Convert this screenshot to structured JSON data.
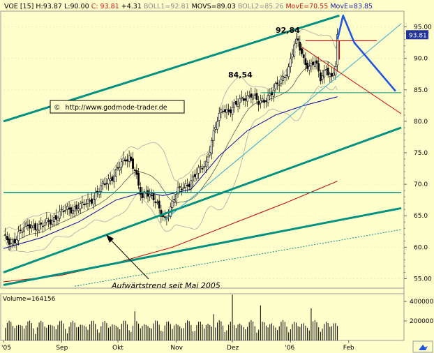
{
  "header": {
    "symbol": "VOE [15]",
    "high": "H:93.87",
    "low": "L:90.00",
    "close": "C: 93.81",
    "change": "+4.31",
    "boll1": "BOLL1=92.81",
    "movs": "MOVS=89.03",
    "boll2": "BOLL2=85.26",
    "move_red": "MovE=70.55",
    "move_blue": "MovE=83.85"
  },
  "watermark": "http://www.godmode-trader.de",
  "copyright_symbol": "©",
  "annotations": {
    "peak_label": "92,84",
    "support_label": "84,54",
    "trend_label": "Aufwärtstrend seit Mai 2005"
  },
  "price_badge": "93.81",
  "volume_label": "Volume=164156",
  "colors": {
    "background": "#ffffcc",
    "trend": "#009080",
    "ma_blue": "#1a1aa0",
    "ma_red": "#c01010",
    "badge": "#223399",
    "projection": "#2255dd"
  },
  "chart_data": {
    "type": "candlestick",
    "price_axis": {
      "ylim": [
        53.5,
        97.5
      ],
      "ticks": [
        55,
        60,
        65,
        70,
        75,
        80,
        85,
        90,
        95
      ],
      "tick_labels": [
        "55.00",
        "60.0",
        "65.0",
        "70.0",
        "75.0",
        "80.0",
        "85.0",
        "90.0",
        "95.00"
      ]
    },
    "volume_axis": {
      "ylim": [
        0,
        480000
      ],
      "ticks": [
        200000,
        400000
      ],
      "tick_labels": [
        "200000",
        "400000"
      ]
    },
    "x_labels": [
      {
        "label": "'05",
        "day": 0
      },
      {
        "label": "Sep",
        "day": 31
      },
      {
        "label": "Okt",
        "day": 61
      },
      {
        "label": "Nov",
        "day": 92
      },
      {
        "label": "Dez",
        "day": 122
      },
      {
        "label": "'06",
        "day": 153
      },
      {
        "label": "Feb",
        "day": 184
      }
    ],
    "days_visible": 212,
    "close_anchors": [
      {
        "day": 0,
        "close": 61.5
      },
      {
        "day": 4,
        "close": 60.5
      },
      {
        "day": 8,
        "close": 62.2
      },
      {
        "day": 14,
        "close": 63.5
      },
      {
        "day": 20,
        "close": 63.2
      },
      {
        "day": 26,
        "close": 64.5
      },
      {
        "day": 34,
        "close": 66.0
      },
      {
        "day": 42,
        "close": 66.5
      },
      {
        "day": 48,
        "close": 68.0
      },
      {
        "day": 54,
        "close": 70.0
      },
      {
        "day": 60,
        "close": 72.0
      },
      {
        "day": 64,
        "close": 73.5
      },
      {
        "day": 67,
        "close": 74.5
      },
      {
        "day": 70,
        "close": 72.5
      },
      {
        "day": 72,
        "close": 69.5
      },
      {
        "day": 74,
        "close": 67.5
      },
      {
        "day": 76,
        "close": 69.0
      },
      {
        "day": 78,
        "close": 68.5
      },
      {
        "day": 80,
        "close": 68.0
      },
      {
        "day": 82,
        "close": 66.5
      },
      {
        "day": 84,
        "close": 65.0
      },
      {
        "day": 86,
        "close": 64.3
      },
      {
        "day": 89,
        "close": 66.5
      },
      {
        "day": 92,
        "close": 68.5
      },
      {
        "day": 97,
        "close": 69.8
      },
      {
        "day": 101,
        "close": 71.0
      },
      {
        "day": 105,
        "close": 72.3
      },
      {
        "day": 108,
        "close": 73.5
      },
      {
        "day": 111,
        "close": 77.0
      },
      {
        "day": 114,
        "close": 80.0
      },
      {
        "day": 117,
        "close": 82.0
      },
      {
        "day": 120,
        "close": 81.8
      },
      {
        "day": 124,
        "close": 82.5
      },
      {
        "day": 128,
        "close": 83.8
      },
      {
        "day": 132,
        "close": 84.3
      },
      {
        "day": 136,
        "close": 82.8
      },
      {
        "day": 140,
        "close": 83.8
      },
      {
        "day": 144,
        "close": 84.8
      },
      {
        "day": 148,
        "close": 86.5
      },
      {
        "day": 152,
        "close": 88.5
      },
      {
        "day": 155,
        "close": 92.0
      },
      {
        "day": 157,
        "close": 92.6
      },
      {
        "day": 160,
        "close": 90.0
      },
      {
        "day": 163,
        "close": 88.5
      },
      {
        "day": 166,
        "close": 89.3
      },
      {
        "day": 169,
        "close": 87.0
      },
      {
        "day": 172,
        "close": 88.6
      },
      {
        "day": 175,
        "close": 86.5
      },
      {
        "day": 178,
        "close": 89.8
      }
    ],
    "moving_averages": [
      {
        "name": "MovE=70.55",
        "color": "#c01010",
        "points": [
          [
            0,
            54.5
          ],
          [
            30,
            55.5
          ],
          [
            60,
            57.5
          ],
          [
            90,
            60.0
          ],
          [
            120,
            63.5
          ],
          [
            150,
            67.0
          ],
          [
            178,
            70.5
          ]
        ]
      },
      {
        "name": "MovE=83.85",
        "color": "#1a1aa0",
        "points": [
          [
            0,
            59.8
          ],
          [
            20,
            61.5
          ],
          [
            40,
            64.0
          ],
          [
            60,
            67.5
          ],
          [
            75,
            68.8
          ],
          [
            85,
            68.2
          ],
          [
            100,
            69.2
          ],
          [
            115,
            74.5
          ],
          [
            130,
            78.5
          ],
          [
            145,
            81.0
          ],
          [
            160,
            82.5
          ],
          [
            178,
            83.9
          ]
        ]
      }
    ],
    "horizontal_lines": [
      {
        "y": 68.7,
        "from_day": 0,
        "to_day": 212,
        "color": "#009080",
        "width": 1.5
      },
      {
        "y": 84.54,
        "from_day": 137,
        "to_day": 212,
        "color": "#009080",
        "width": 1
      }
    ],
    "trend_lines": [
      {
        "p1": [
          0,
          80.0
        ],
        "p2": [
          179,
          96.8
        ],
        "color": "#009080",
        "width": 3
      },
      {
        "p1": [
          0,
          56.0
        ],
        "p2": [
          212,
          79.0
        ],
        "color": "#009080",
        "width": 3
      },
      {
        "p1": [
          0,
          54.0
        ],
        "p2": [
          212,
          66.2
        ],
        "color": "#009080",
        "width": 3
      },
      {
        "p1": [
          38,
          53.8
        ],
        "p2": [
          212,
          62.8
        ],
        "color": "#009080",
        "width": 1,
        "dashed": true
      },
      {
        "p1": [
          86,
          64.3
        ],
        "p2": [
          212,
          95.5
        ],
        "color": "#33aacc",
        "width": 1
      },
      {
        "p1": [
          159,
          91.8
        ],
        "p2": [
          212,
          81.2
        ],
        "color": "#d01010",
        "width": 1
      },
      {
        "p1": [
          161,
          92.8
        ],
        "p2": [
          199,
          92.8
        ],
        "color": "#d01010",
        "width": 1.2
      }
    ],
    "projection": [
      [
        178,
        93.0
      ],
      [
        181,
        96.8
      ],
      [
        187,
        92.5
      ],
      [
        209,
        84.8
      ]
    ],
    "markers": [
      {
        "label": "92,84",
        "day": 157,
        "price": 92.84
      },
      {
        "label": "84,54",
        "day": 137,
        "price": 84.54
      }
    ],
    "last_close": 93.81
  }
}
